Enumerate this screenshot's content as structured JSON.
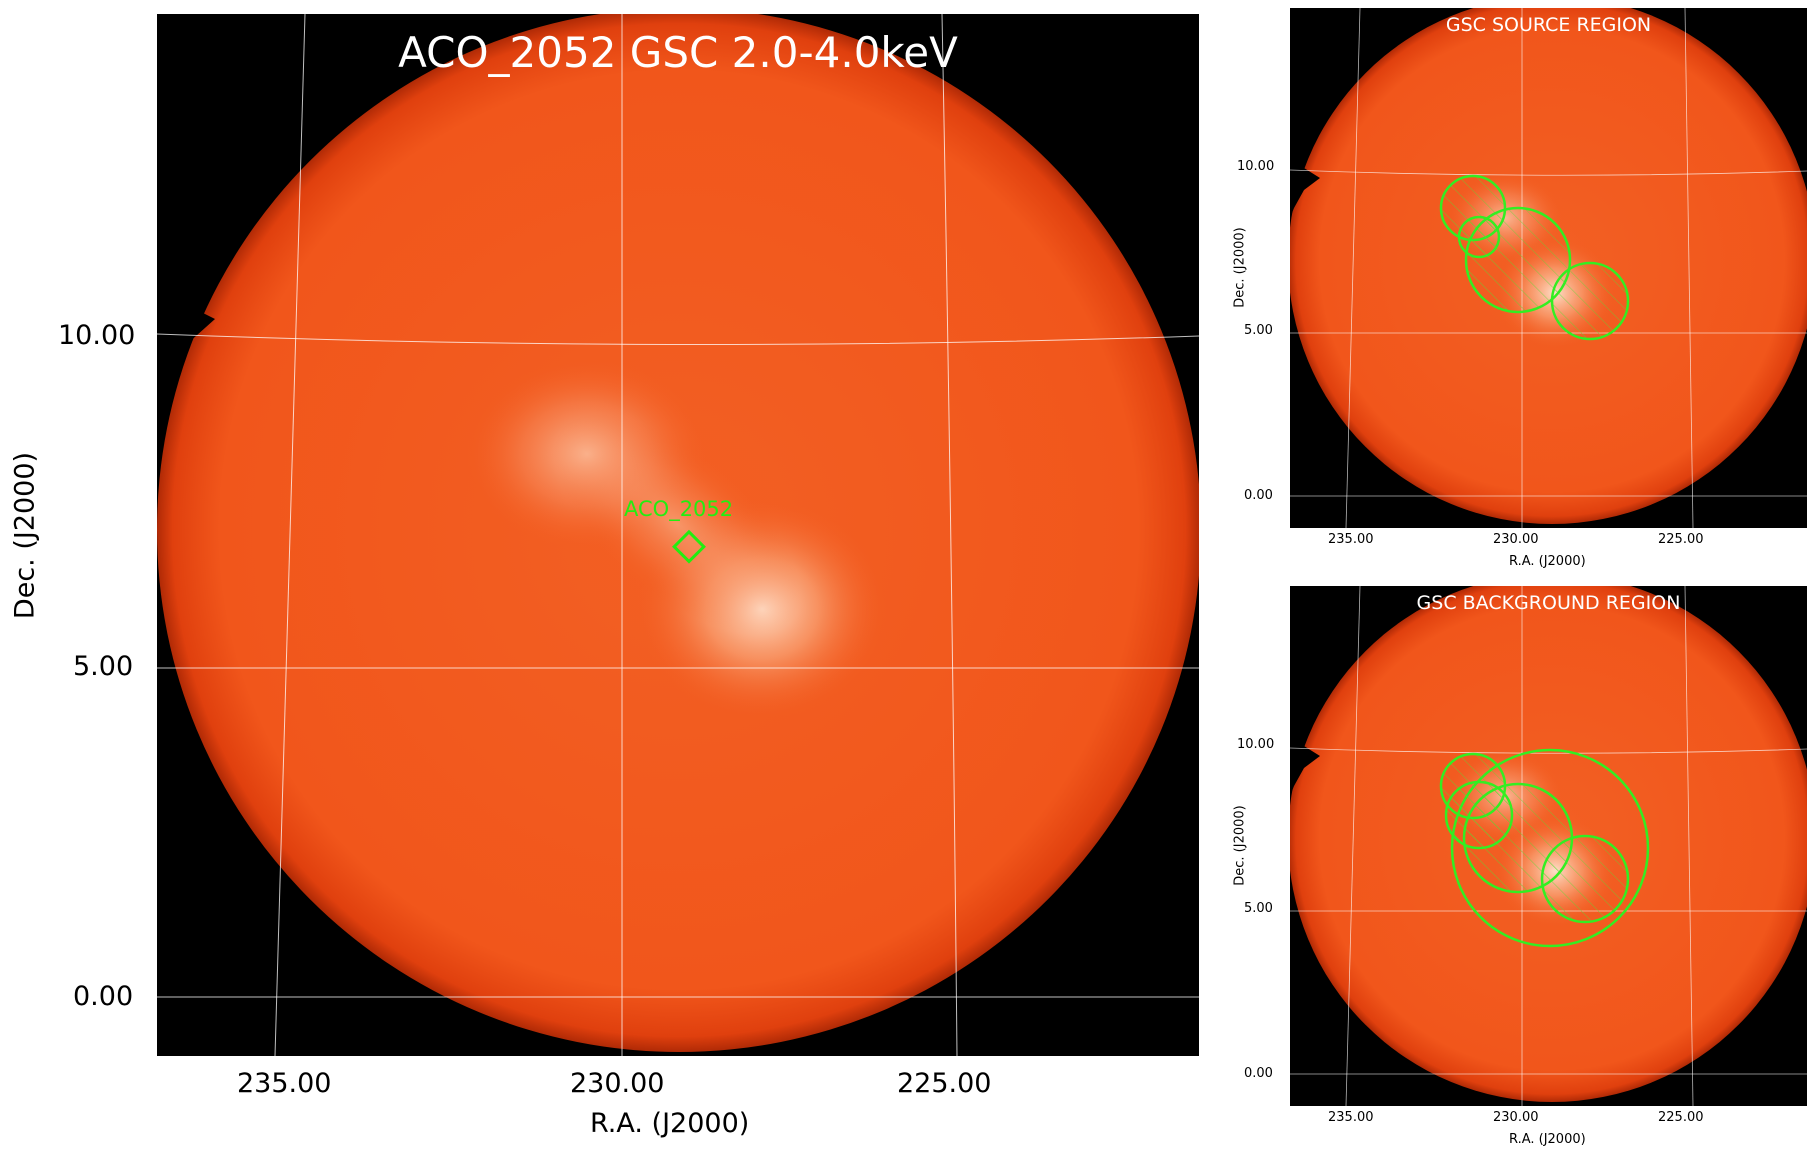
{
  "main_panel": {
    "title": "ACO_2052 GSC 2.0-4.0keV",
    "marker_label": "ACO_2052",
    "x_axis_label": "R.A. (J2000)",
    "y_axis_label": "Dec. (J2000)",
    "x_ticks": [
      "235.00",
      "230.00",
      "225.00"
    ],
    "y_ticks": [
      "10.00",
      "5.00",
      "0.00"
    ]
  },
  "source_panel": {
    "title": "GSC SOURCE REGION",
    "x_axis_label": "R.A. (J2000)",
    "y_axis_label": "Dec. (J2000)",
    "x_ticks": [
      "235.00",
      "230.00",
      "225.00"
    ],
    "y_ticks": [
      "10.00",
      "5.00",
      "0.00"
    ]
  },
  "background_panel": {
    "title": "GSC BACKGROUND REGION",
    "x_axis_label": "R.A. (J2000)",
    "y_axis_label": "Dec. (J2000)",
    "x_ticks": [
      "235.00",
      "230.00",
      "225.00"
    ],
    "y_ticks": [
      "10.00",
      "5.00",
      "0.00"
    ]
  },
  "colors": {
    "field": "#f25a1c",
    "background": "#000000",
    "region": "#33ee22",
    "grid": "#ffffff"
  }
}
